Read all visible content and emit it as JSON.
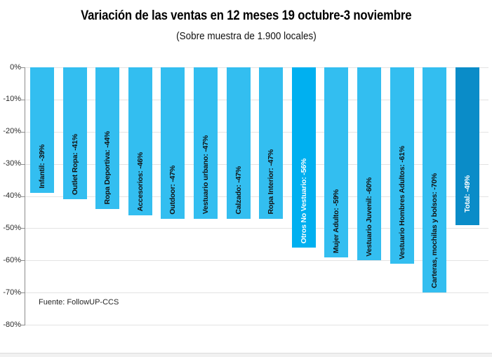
{
  "header": {
    "title": "Variación de las ventas en 12 meses 19 octubre-3 noviembre",
    "subtitle": "(Sobre muestra de 1.900 locales)"
  },
  "footer": {
    "source": "Fuente: FollowUP-CCS"
  },
  "chart_data": {
    "type": "bar",
    "orientation": "vertical-negative",
    "title": "Variación de las ventas en 12 meses 19 octubre-3 noviembre",
    "subtitle": "(Sobre muestra de 1.900 locales)",
    "xlabel": "",
    "ylabel": "",
    "ylim": [
      -80,
      0
    ],
    "grid": true,
    "yticks": [
      "0%",
      "-10%",
      "-20%",
      "-30%",
      "-40%",
      "-50%",
      "-60%",
      "-70%",
      "-80%"
    ],
    "categories": [
      "Infantil",
      "Outlet Ropa",
      "Ropa Deportiva",
      "Accesorios",
      "Outdoor",
      "Vestuario urbano",
      "Calzado",
      "Ropa Interior",
      "Otros No Vestuario",
      "Mujer Adulto",
      "Vestuario Juvenil",
      "Vestuario Hombres Adultos",
      "Carteras, mochilas y bolsos",
      "Total"
    ],
    "values": [
      -39,
      -41,
      -44,
      -46,
      -47,
      -47,
      -47,
      -47,
      -56,
      -59,
      -60,
      -61,
      -70,
      -49
    ],
    "bars": [
      {
        "label": "Infantil: -39%",
        "value": -39
      },
      {
        "label": "Outlet Ropa: -41%",
        "value": -41
      },
      {
        "label": "Ropa Deportiva: -44%",
        "value": -44
      },
      {
        "label": "Accesorios: -46%",
        "value": -46
      },
      {
        "label": "Outdoor: -47%",
        "value": -47
      },
      {
        "label": "Vestuario urbano: -47%",
        "value": -47
      },
      {
        "label": "Calzado: -47%",
        "value": -47
      },
      {
        "label": "Ropa Interior: -47%",
        "value": -47
      },
      {
        "label": "Otros No Vestuario: -56%",
        "value": -56,
        "color": "#00B0F0",
        "text_color": "#ffffff"
      },
      {
        "label": "Mujer Adulto: -59%",
        "value": -59
      },
      {
        "label": "Vestuario Juvenil: -60%",
        "value": -60
      },
      {
        "label": "Vestuario Hombres Adultos: -61%",
        "value": -61
      },
      {
        "label": "Carteras, mochilas y bolsos: -70%",
        "value": -70
      },
      {
        "label": "Total: -49%",
        "value": -49,
        "color": "#0A8CC8",
        "text_color": "#ffffff"
      }
    ],
    "colors": {
      "bar": "#33BEF0",
      "highlight_bar": "#00B0F0",
      "total_bar": "#0A8CC8",
      "label": "#111111",
      "gridline": "#e3e3e3",
      "axis": "#8c8c8c"
    }
  }
}
